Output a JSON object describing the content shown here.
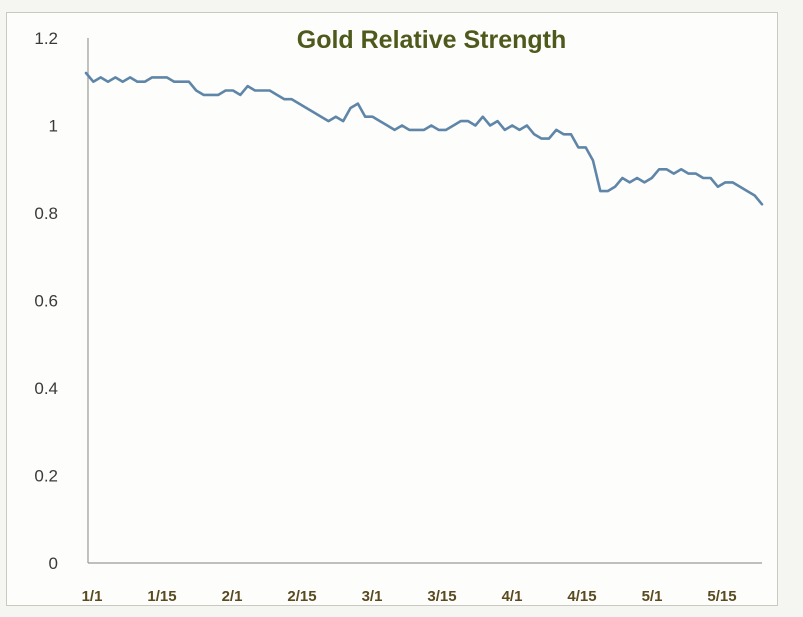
{
  "chart_data": {
    "type": "line",
    "title": "Gold Relative Strength",
    "xlabel": "",
    "ylabel": "",
    "ylim": [
      0,
      1.2
    ],
    "yticks": [
      "0",
      "0.2",
      "0.4",
      "0.6",
      "0.8",
      "1",
      "1.2"
    ],
    "xticks": [
      "1/1",
      "1/15",
      "2/1",
      "2/15",
      "3/1",
      "3/15",
      "4/1",
      "4/15",
      "5/1",
      "5/15"
    ],
    "grid": false,
    "legend": "none",
    "colors": {
      "line": "#5f86a8",
      "title": "#4e5a1c",
      "axis": "#9a9a9a"
    },
    "series": [
      {
        "name": "Gold Relative Strength",
        "values": [
          1.12,
          1.1,
          1.11,
          1.1,
          1.11,
          1.1,
          1.11,
          1.1,
          1.1,
          1.11,
          1.11,
          1.11,
          1.1,
          1.1,
          1.1,
          1.08,
          1.07,
          1.07,
          1.07,
          1.08,
          1.08,
          1.07,
          1.09,
          1.08,
          1.08,
          1.08,
          1.07,
          1.06,
          1.06,
          1.05,
          1.04,
          1.03,
          1.02,
          1.01,
          1.02,
          1.01,
          1.04,
          1.05,
          1.02,
          1.02,
          1.01,
          1.0,
          0.99,
          1.0,
          0.99,
          0.99,
          0.99,
          1.0,
          0.99,
          0.99,
          1.0,
          1.01,
          1.01,
          1.0,
          1.02,
          1.0,
          1.01,
          0.99,
          1.0,
          0.99,
          1.0,
          0.98,
          0.97,
          0.97,
          0.99,
          0.98,
          0.98,
          0.95,
          0.95,
          0.92,
          0.85,
          0.85,
          0.86,
          0.88,
          0.87,
          0.88,
          0.87,
          0.88,
          0.9,
          0.9,
          0.89,
          0.9,
          0.89,
          0.89,
          0.88,
          0.88,
          0.86,
          0.87,
          0.87,
          0.86,
          0.85,
          0.84,
          0.82
        ]
      }
    ]
  }
}
